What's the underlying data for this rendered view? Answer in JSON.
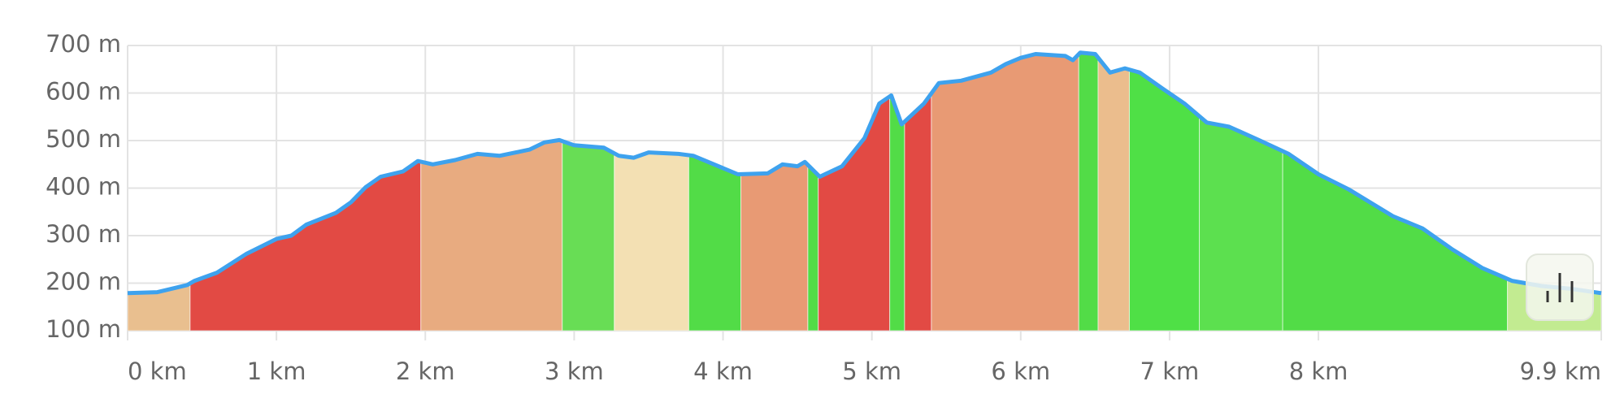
{
  "chart_data": {
    "type": "elevation-area",
    "x": [
      0,
      0.2,
      0.4,
      0.45,
      0.6,
      0.8,
      1.0,
      1.1,
      1.2,
      1.4,
      1.5,
      1.6,
      1.7,
      1.85,
      1.95,
      2.05,
      2.2,
      2.35,
      2.5,
      2.7,
      2.8,
      2.9,
      3.0,
      3.2,
      3.3,
      3.4,
      3.5,
      3.7,
      3.8,
      4.0,
      4.1,
      4.3,
      4.4,
      4.5,
      4.55,
      4.65,
      4.8,
      4.95,
      5.05,
      5.13,
      5.2,
      5.35,
      5.45,
      5.6,
      5.8,
      5.9,
      6.0,
      6.1,
      6.3,
      6.35,
      6.4,
      6.5,
      6.6,
      6.7,
      6.8,
      6.95,
      7.1,
      7.25,
      7.4,
      7.6,
      7.8,
      8.0,
      8.2,
      8.5,
      8.7,
      8.9,
      9.1,
      9.3,
      9.5,
      9.7,
      9.9
    ],
    "values": [
      179,
      181,
      196,
      205,
      222,
      262,
      293,
      300,
      323,
      348,
      370,
      402,
      424,
      435,
      457,
      450,
      459,
      472,
      468,
      481,
      496,
      501,
      490,
      485,
      468,
      464,
      475,
      472,
      468,
      442,
      429,
      431,
      450,
      446,
      455,
      424,
      446,
      505,
      578,
      595,
      534,
      578,
      621,
      626,
      643,
      661,
      674,
      682,
      678,
      669,
      685,
      682,
      643,
      652,
      643,
      610,
      578,
      538,
      529,
      501,
      472,
      429,
      398,
      341,
      315,
      271,
      232,
      205,
      194,
      188,
      179
    ],
    "color": "#3ea2ee",
    "segments": [
      {
        "start": 0,
        "end": 0.42,
        "color": "#e9bf8f"
      },
      {
        "start": 0.42,
        "end": 1.97,
        "color": "#e24a44"
      },
      {
        "start": 1.97,
        "end": 2.92,
        "color": "#e8ab80"
      },
      {
        "start": 2.92,
        "end": 3.27,
        "color": "#68dd55"
      },
      {
        "start": 3.27,
        "end": 3.77,
        "color": "#f3e0b3"
      },
      {
        "start": 3.77,
        "end": 4.12,
        "color": "#52dc47"
      },
      {
        "start": 4.12,
        "end": 4.57,
        "color": "#e89a74"
      },
      {
        "start": 4.57,
        "end": 4.64,
        "color": "#52dc47"
      },
      {
        "start": 4.64,
        "end": 5.12,
        "color": "#e24a44"
      },
      {
        "start": 5.12,
        "end": 5.22,
        "color": "#52dc47"
      },
      {
        "start": 5.22,
        "end": 5.4,
        "color": "#e24a44"
      },
      {
        "start": 5.4,
        "end": 6.39,
        "color": "#e89a74"
      },
      {
        "start": 6.39,
        "end": 6.52,
        "color": "#52dc47"
      },
      {
        "start": 6.52,
        "end": 6.73,
        "color": "#ebbd8d"
      },
      {
        "start": 6.73,
        "end": 7.2,
        "color": "#4fe046"
      },
      {
        "start": 7.2,
        "end": 7.76,
        "color": "#5ce04f"
      },
      {
        "start": 7.76,
        "end": 9.27,
        "color": "#52dc47"
      },
      {
        "start": 9.27,
        "end": 9.9,
        "color": "#c2eb91"
      }
    ],
    "xlim": [
      0,
      9.9
    ],
    "xticks": [
      {
        "value": 0,
        "label": "0 km"
      },
      {
        "value": 1,
        "label": "1 km"
      },
      {
        "value": 2,
        "label": "2 km"
      },
      {
        "value": 3,
        "label": "3 km"
      },
      {
        "value": 4,
        "label": "4 km"
      },
      {
        "value": 5,
        "label": "5 km"
      },
      {
        "value": 6,
        "label": "6 km"
      },
      {
        "value": 7,
        "label": "7 km"
      },
      {
        "value": 8,
        "label": "8 km"
      },
      {
        "value": 9.9,
        "label": "9.9 km"
      }
    ],
    "ylim": [
      100,
      700
    ],
    "yticks": [
      {
        "value": 100,
        "label": "100 m"
      },
      {
        "value": 200,
        "label": "200 m"
      },
      {
        "value": 300,
        "label": "300 m"
      },
      {
        "value": 400,
        "label": "400 m"
      },
      {
        "value": 500,
        "label": "500 m"
      },
      {
        "value": 600,
        "label": "600 m"
      },
      {
        "value": 700,
        "label": "700 m"
      }
    ],
    "grid": true
  }
}
